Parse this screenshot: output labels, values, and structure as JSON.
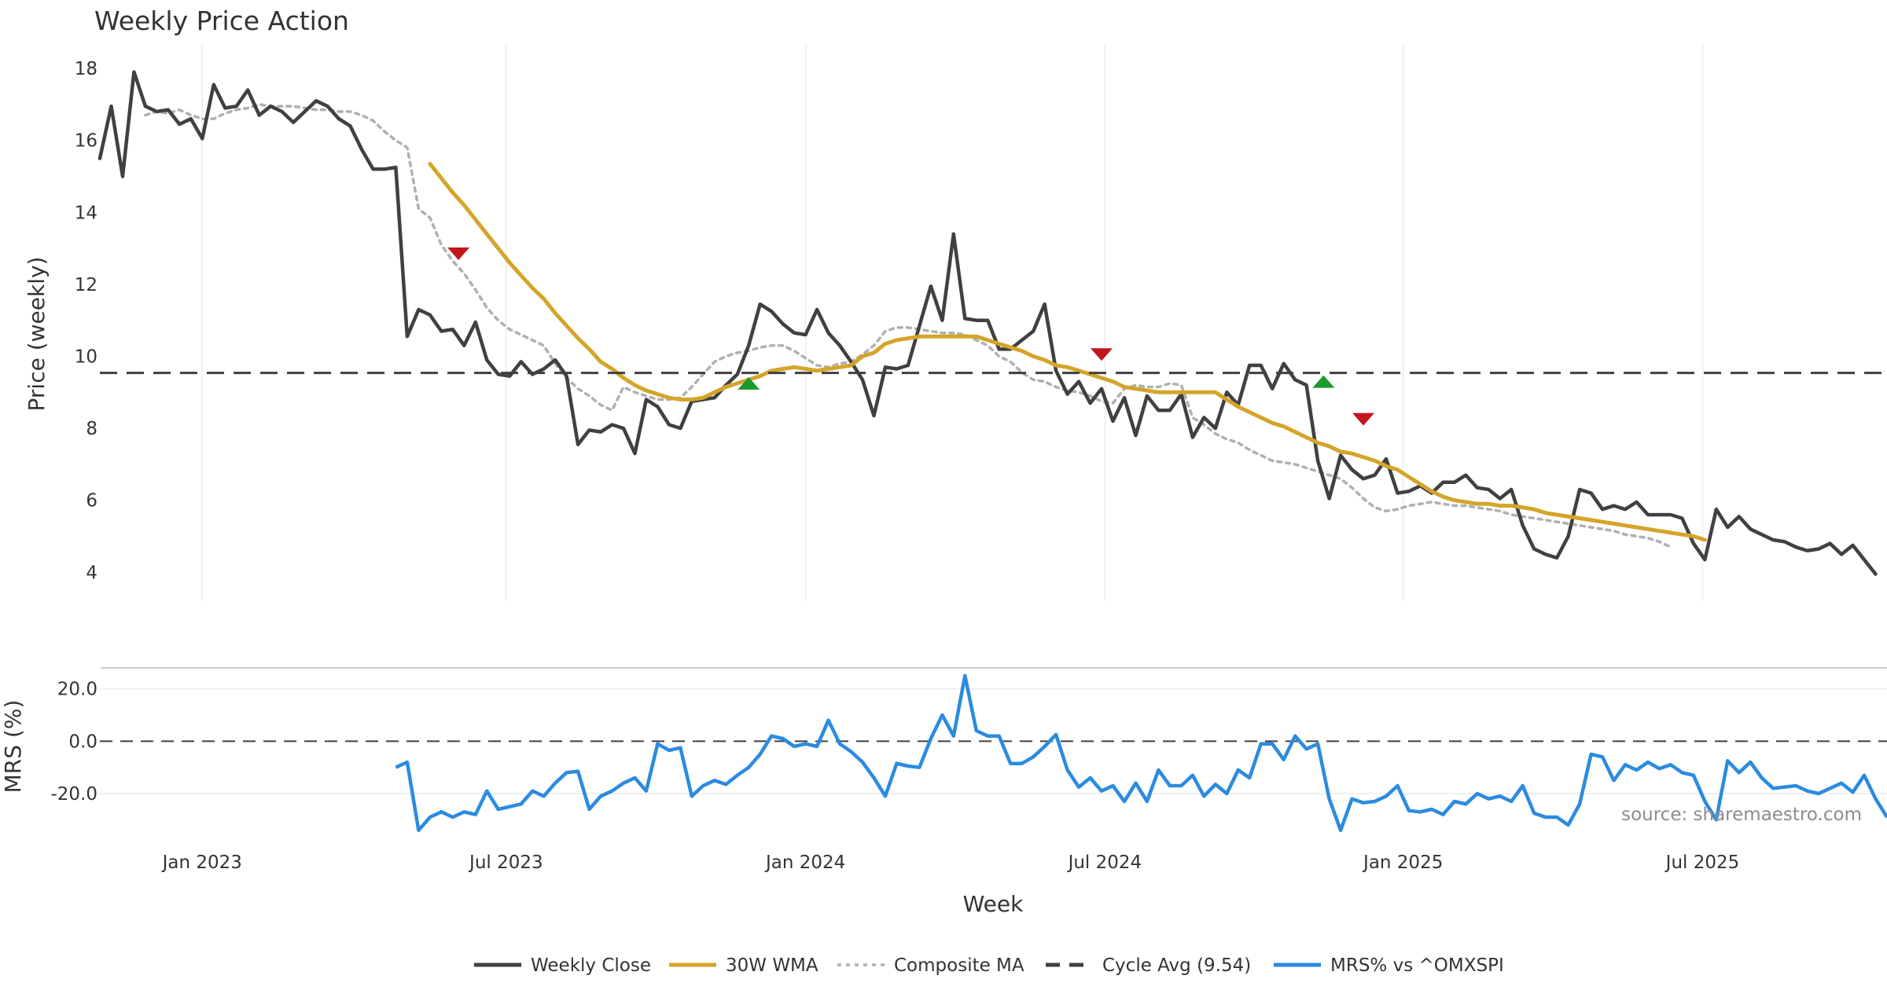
{
  "chart_data": [
    {
      "type": "line",
      "title": "Weekly Price Action",
      "xlabel": "Week",
      "ylabel": "Price (weekly)",
      "ylim": [
        3.2,
        18.7
      ],
      "yticks": [
        "4",
        "6",
        "8",
        "10",
        "12",
        "14",
        "16",
        "18"
      ],
      "xticks": [
        "Jan 2023",
        "Jul 2023",
        "Jan 2024",
        "Jul 2024",
        "Jan 2025",
        "Jul 2025"
      ],
      "xtick_weeks": [
        9,
        35.7,
        62,
        88.3,
        114.5,
        140.8
      ],
      "x_range": [
        0,
        157
      ],
      "grid": "vertical",
      "series": [
        {
          "name": "Weekly Close",
          "color": "#404040",
          "style": "solid",
          "values": [
            15.5,
            16.95,
            15.0,
            17.9,
            16.95,
            16.8,
            16.85,
            16.45,
            16.6,
            16.05,
            17.55,
            16.9,
            16.95,
            17.4,
            16.7,
            16.95,
            16.8,
            16.5,
            16.8,
            17.1,
            16.95,
            16.6,
            16.4,
            15.75,
            15.2,
            15.2,
            15.25,
            10.55,
            11.3,
            11.15,
            10.7,
            10.75,
            10.3,
            10.95,
            9.9,
            9.5,
            9.45,
            9.85,
            9.5,
            9.65,
            9.9,
            9.45,
            7.55,
            7.95,
            7.9,
            8.1,
            8.0,
            7.3,
            8.8,
            8.6,
            8.1,
            8.0,
            8.75,
            8.8,
            8.85,
            9.2,
            9.5,
            10.3,
            11.45,
            11.25,
            10.9,
            10.65,
            10.6,
            11.3,
            10.65,
            10.3,
            9.85,
            9.35,
            8.35,
            9.7,
            9.65,
            9.75,
            10.85,
            11.95,
            11.0,
            13.4,
            11.05,
            11.0,
            11.0,
            10.2,
            10.2,
            10.45,
            10.7,
            11.45,
            9.6,
            8.95,
            9.3,
            8.7,
            9.1,
            8.2,
            8.85,
            7.8,
            8.9,
            8.5,
            8.5,
            8.95,
            7.75,
            8.3,
            8.0,
            9.0,
            8.65,
            9.75,
            9.75,
            9.1,
            9.8,
            9.35,
            9.2,
            7.1,
            6.05,
            7.25,
            6.85,
            6.6,
            6.7,
            7.15,
            6.2,
            6.25,
            6.4,
            6.2,
            6.5,
            6.5,
            6.7,
            6.35,
            6.3,
            6.05,
            6.3,
            5.3,
            4.65,
            4.5,
            4.4,
            5.0,
            6.3,
            6.2,
            5.75,
            5.85,
            5.75,
            5.95,
            5.6,
            5.6,
            5.6,
            5.5,
            4.8,
            4.35,
            5.75,
            5.25,
            5.55,
            5.2,
            5.05,
            4.9,
            4.85,
            4.7,
            4.6,
            4.65,
            4.8,
            4.5,
            4.75,
            4.35,
            3.95
          ]
        },
        {
          "name": "30W WMA",
          "color": "#d4a52a",
          "style": "solid",
          "start_week": 29,
          "values": [
            15.35,
            14.95,
            14.55,
            14.2,
            13.8,
            13.4,
            13.0,
            12.6,
            12.25,
            11.9,
            11.6,
            11.2,
            10.85,
            10.5,
            10.2,
            9.85,
            9.65,
            9.4,
            9.2,
            9.05,
            8.95,
            8.85,
            8.8,
            8.8,
            8.85,
            9.0,
            9.15,
            9.25,
            9.35,
            9.45,
            9.6,
            9.65,
            9.7,
            9.65,
            9.6,
            9.65,
            9.7,
            9.75,
            10.0,
            10.1,
            10.35,
            10.45,
            10.5,
            10.55,
            10.55,
            10.55,
            10.55,
            10.55,
            10.55,
            10.45,
            10.35,
            10.25,
            10.15,
            10.0,
            9.9,
            9.75,
            9.7,
            9.6,
            9.5,
            9.4,
            9.3,
            9.15,
            9.1,
            9.05,
            9.0,
            9.0,
            9.0,
            9.0,
            9.0,
            9.0,
            8.8,
            8.6,
            8.45,
            8.3,
            8.15,
            8.05,
            7.9,
            7.75,
            7.6,
            7.5,
            7.35,
            7.3,
            7.2,
            7.1,
            6.95,
            6.85,
            6.65,
            6.45,
            6.25,
            6.1,
            6.0,
            5.95,
            5.9,
            5.9,
            5.85,
            5.85,
            5.8,
            5.75,
            5.65,
            5.6,
            5.55,
            5.5,
            5.45,
            5.4,
            5.35,
            5.3,
            5.25,
            5.2,
            5.15,
            5.1,
            5.05,
            5.0,
            4.9
          ]
        },
        {
          "name": "Composite MA",
          "color": "#b0b0b0",
          "style": "dotted",
          "start_week": 4,
          "values": [
            16.7,
            16.8,
            16.75,
            16.85,
            16.7,
            16.6,
            16.6,
            16.75,
            16.85,
            16.9,
            17.0,
            16.95,
            16.95,
            16.95,
            16.9,
            16.85,
            16.85,
            16.8,
            16.8,
            16.7,
            16.55,
            16.25,
            16.0,
            15.8,
            14.1,
            13.85,
            13.1,
            12.65,
            12.3,
            11.85,
            11.35,
            11.0,
            10.75,
            10.6,
            10.45,
            10.3,
            9.8,
            9.4,
            9.1,
            8.9,
            8.65,
            8.5,
            9.15,
            9.0,
            8.9,
            8.8,
            8.8,
            8.85,
            9.15,
            9.5,
            9.85,
            10.0,
            10.1,
            10.15,
            10.25,
            10.3,
            10.3,
            10.15,
            9.95,
            9.75,
            9.7,
            9.8,
            9.85,
            10.05,
            10.3,
            10.7,
            10.8,
            10.8,
            10.75,
            10.7,
            10.65,
            10.65,
            10.6,
            10.45,
            10.3,
            10.0,
            9.85,
            9.55,
            9.35,
            9.3,
            9.15,
            9.05,
            9.0,
            8.9,
            8.75,
            8.7,
            9.1,
            9.2,
            9.15,
            9.15,
            9.25,
            9.2,
            8.3,
            8.1,
            7.85,
            7.7,
            7.6,
            7.4,
            7.25,
            7.1,
            7.05,
            7.0,
            6.9,
            6.8,
            6.7,
            6.6,
            6.35,
            6.05,
            5.8,
            5.7,
            5.75,
            5.85,
            5.9,
            5.95,
            5.9,
            5.85,
            5.85,
            5.8,
            5.75,
            5.7,
            5.6,
            5.55,
            5.5,
            5.45,
            5.4,
            5.35,
            5.3,
            5.25,
            5.2,
            5.15,
            5.05,
            5.0,
            4.95,
            4.85,
            4.7
          ]
        },
        {
          "name": "Cycle Avg (9.54)",
          "color": "#404040",
          "style": "dashed",
          "value": 9.54
        }
      ],
      "signals": [
        {
          "type": "sell",
          "week": 31.5,
          "value": 12.85,
          "color": "#c0161c"
        },
        {
          "type": "buy",
          "week": 57,
          "value": 9.25,
          "color": "#1a9a2a"
        },
        {
          "type": "sell",
          "week": 88,
          "value": 10.05,
          "color": "#c0161c"
        },
        {
          "type": "buy",
          "week": 107.5,
          "value": 9.3,
          "color": "#1a9a2a"
        },
        {
          "type": "sell",
          "week": 111,
          "value": 8.25,
          "color": "#c0161c"
        }
      ]
    },
    {
      "type": "line",
      "ylabel": "MRS (%)",
      "ylim": [
        -35,
        28
      ],
      "yticks": [
        "20.0",
        "0.0",
        "-20.0"
      ],
      "zero_line": true,
      "series": [
        {
          "name": "MRS% vs ^OMXSPI",
          "color": "#2b8be0",
          "style": "solid",
          "start_week": 26,
          "values": [
            -10,
            -8,
            -34,
            -29,
            -27,
            -29,
            -27,
            -28,
            -19,
            -26,
            -25,
            -24,
            -19,
            -21,
            -16,
            -12,
            -11.5,
            -26,
            -21,
            -19,
            -16,
            -14,
            -19,
            -1,
            -3.5,
            -2.5,
            -21,
            -17,
            -15,
            -16.5,
            -13,
            -10,
            -5,
            2,
            1,
            -2,
            -1,
            -2,
            8,
            -1,
            -4,
            -8,
            -14,
            -21,
            -8.5,
            -9.5,
            -10,
            1,
            10,
            2,
            25,
            4,
            2,
            2,
            -8.5,
            -8.5,
            -6,
            -2,
            2.5,
            -11,
            -17.5,
            -14,
            -19,
            -17,
            -23,
            -16,
            -23,
            -11,
            -17,
            -17,
            -13,
            -21,
            -16.5,
            -20,
            -11,
            -14,
            -1,
            -1,
            -7,
            2,
            -3,
            -1,
            -22,
            -34,
            -22,
            -23.5,
            -23,
            -21,
            -17,
            -26.5,
            -27,
            -26,
            -28,
            -23,
            -24,
            -20,
            -22,
            -21,
            -23,
            -17,
            -27.5,
            -29,
            -29,
            -32,
            -24,
            -5,
            -6,
            -15,
            -9,
            -11,
            -8,
            -10.5,
            -9,
            -12,
            -13,
            -23,
            -30,
            -7.5,
            -12,
            -8,
            -14,
            -18,
            -17.5,
            -17,
            -19,
            -20,
            -18,
            -16,
            -19.5,
            -13,
            -22,
            -29
          ]
        }
      ]
    }
  ],
  "legend": [
    {
      "label": "Weekly Close",
      "color": "#404040",
      "style": "solid"
    },
    {
      "label": "30W WMA",
      "color": "#d4a52a",
      "style": "solid"
    },
    {
      "label": "Composite MA",
      "color": "#b0b0b0",
      "style": "dotted"
    },
    {
      "label": "Cycle Avg (9.54)",
      "color": "#404040",
      "style": "dashed"
    },
    {
      "label": "MRS% vs ^OMXSPI",
      "color": "#2b8be0",
      "style": "solid"
    }
  ],
  "legend_position": "bottom-center",
  "source": "source: sharemaestro.com"
}
